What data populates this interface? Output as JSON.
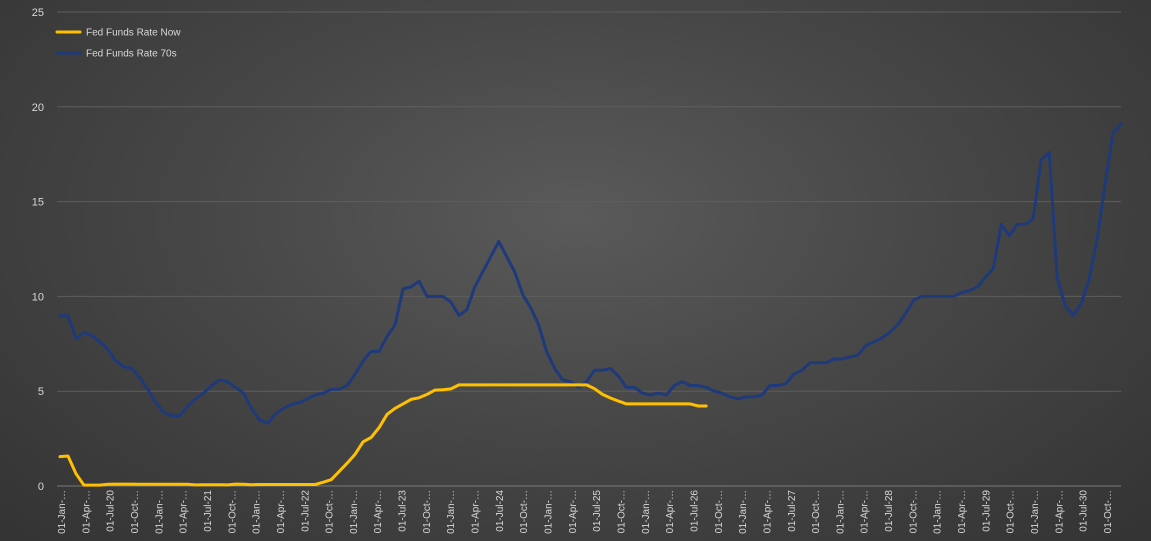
{
  "chart_data": {
    "type": "line",
    "title": "",
    "xlabel": "",
    "ylabel": "",
    "ylim": [
      0,
      25
    ],
    "yticks": [
      0,
      5,
      10,
      15,
      20,
      25
    ],
    "grid": true,
    "legend_position": "top-left",
    "x_tick_labels": [
      "01-Jan-…",
      "01-Apr-…",
      "01-Jul-20",
      "01-Oct-…",
      "01-Jan-…",
      "01-Apr-…",
      "01-Jul-21",
      "01-Oct-…",
      "01-Jan-…",
      "01-Apr-…",
      "01-Jul-22",
      "01-Oct-…",
      "01-Jan-…",
      "01-Apr-…",
      "01-Jul-23",
      "01-Oct-…",
      "01-Jan-…",
      "01-Apr-…",
      "01-Jul-24",
      "01-Oct-…",
      "01-Jan-…",
      "01-Apr-…",
      "01-Jul-25",
      "01-Oct-…",
      "01-Jan-…",
      "01-Apr-…",
      "01-Jul-26",
      "01-Oct-…",
      "01-Jan-…",
      "01-Apr-…",
      "01-Jul-27",
      "01-Oct-…",
      "01-Jan-…",
      "01-Apr-…",
      "01-Jul-28",
      "01-Oct-…",
      "01-Jan-…",
      "01-Apr-…",
      "01-Jul-29",
      "01-Oct-…",
      "01-Jan-…",
      "01-Apr-…",
      "01-Jul-30",
      "01-Oct-…"
    ],
    "series": [
      {
        "name": "Fed Funds Rate Now",
        "color": "#ffc000",
        "values": [
          1.55,
          1.58,
          0.65,
          0.05,
          0.05,
          0.05,
          0.09,
          0.1,
          0.1,
          0.1,
          0.09,
          0.09,
          0.09,
          0.09,
          0.09,
          0.09,
          0.09,
          0.06,
          0.07,
          0.07,
          0.07,
          0.06,
          0.1,
          0.09,
          0.07,
          0.08,
          0.08,
          0.08,
          0.08,
          0.08,
          0.08,
          0.08,
          0.08,
          0.2,
          0.33,
          0.77,
          1.21,
          1.68,
          2.33,
          2.56,
          3.08,
          3.78,
          4.1,
          4.33,
          4.57,
          4.65,
          4.83,
          5.06,
          5.08,
          5.12,
          5.33,
          5.33,
          5.33,
          5.33,
          5.33,
          5.33,
          5.33,
          5.33,
          5.33,
          5.33,
          5.33,
          5.33,
          5.33,
          5.33,
          5.33,
          5.33,
          5.33,
          5.13,
          4.83,
          4.64,
          4.48,
          4.33,
          4.33,
          4.33,
          4.33,
          4.33,
          4.33,
          4.33,
          4.33,
          4.33,
          4.22,
          4.22
        ]
      },
      {
        "name": "Fed Funds Rate 70s",
        "color": "#1f3a7a",
        "values": [
          8.98,
          8.98,
          7.76,
          8.1,
          7.94,
          7.6,
          7.2,
          6.6,
          6.3,
          6.2,
          5.7,
          5.1,
          4.4,
          3.9,
          3.7,
          3.7,
          4.2,
          4.6,
          4.9,
          5.3,
          5.6,
          5.5,
          5.2,
          4.9,
          4.1,
          3.5,
          3.3,
          3.8,
          4.1,
          4.3,
          4.4,
          4.6,
          4.8,
          4.9,
          5.1,
          5.1,
          5.3,
          5.9,
          6.6,
          7.1,
          7.1,
          7.9,
          8.5,
          10.4,
          10.5,
          10.8,
          10.0,
          10.0,
          10.0,
          9.7,
          9.0,
          9.3,
          10.5,
          11.3,
          12.1,
          12.9,
          12.1,
          11.3,
          10.1,
          9.4,
          8.5,
          7.1,
          6.2,
          5.6,
          5.5,
          5.2,
          5.5,
          6.1,
          6.1,
          6.2,
          5.8,
          5.2,
          5.2,
          4.9,
          4.8,
          4.9,
          4.8,
          5.3,
          5.5,
          5.3,
          5.3,
          5.2,
          5.0,
          4.9,
          4.7,
          4.6,
          4.7,
          4.7,
          4.8,
          5.3,
          5.3,
          5.4,
          5.9,
          6.1,
          6.5,
          6.5,
          6.5,
          6.7,
          6.7,
          6.8,
          6.9,
          7.4,
          7.6,
          7.8,
          8.1,
          8.5,
          9.1,
          9.8,
          10.0,
          10.0,
          10.0,
          10.0,
          10.0,
          10.2,
          10.3,
          10.5,
          11.0,
          11.5,
          13.8,
          13.2,
          13.8,
          13.8,
          14.1,
          17.2,
          17.6,
          11.0,
          9.5,
          9.0,
          9.6,
          10.9,
          13.0,
          15.9,
          18.6,
          19.1
        ]
      }
    ]
  }
}
